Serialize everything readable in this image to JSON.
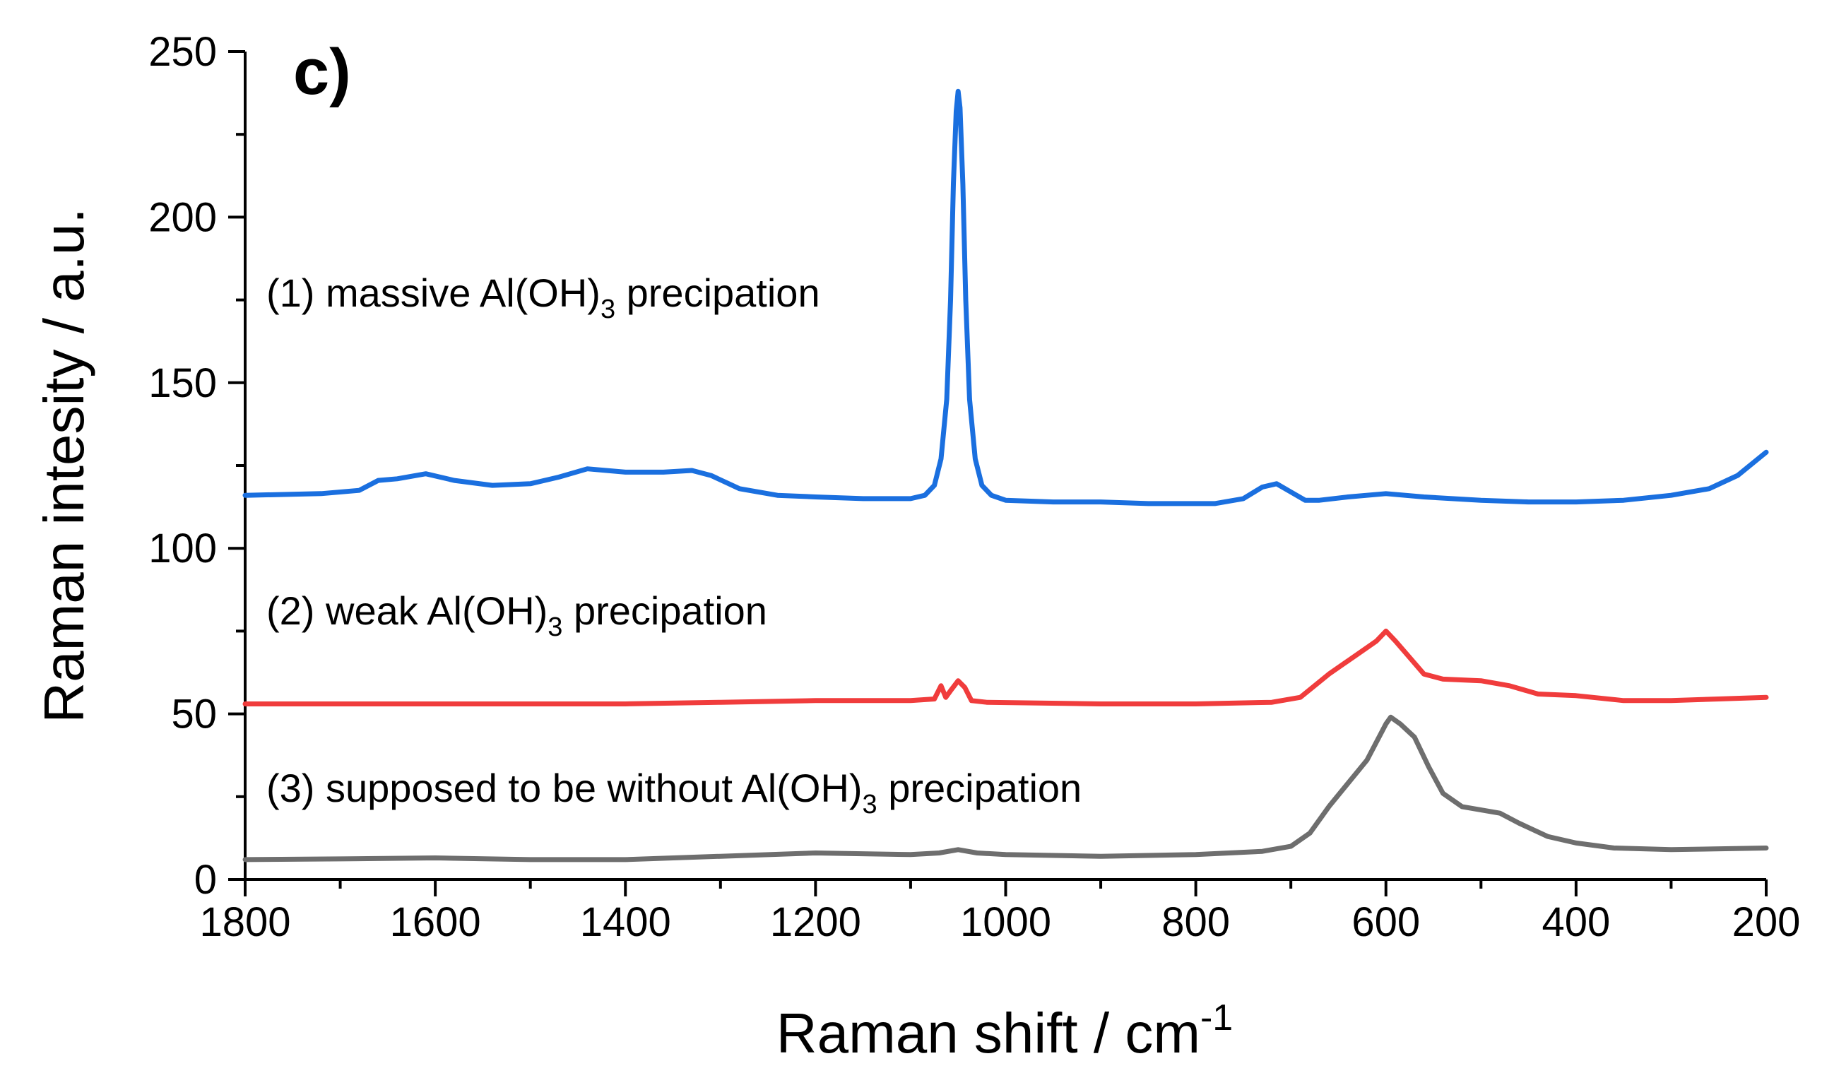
{
  "chart_data": {
    "type": "line",
    "title": "",
    "panel_label": "c)",
    "xlabel": "Raman shift / cm",
    "xlabel_sup": "-1",
    "ylabel": "Raman intesity / a.u.",
    "xlim": [
      1800,
      200
    ],
    "ylim": [
      0,
      250
    ],
    "x_reversed": true,
    "x_ticks": [
      1800,
      1600,
      1400,
      1200,
      1000,
      800,
      600,
      400,
      200
    ],
    "y_ticks": [
      0,
      50,
      100,
      150,
      200,
      250
    ],
    "grid": false,
    "series": [
      {
        "name": "(1) massive Al(OH)3 precipation",
        "color": "#1a6fdf",
        "points": [
          [
            1800,
            116
          ],
          [
            1720,
            116.5
          ],
          [
            1680,
            117.5
          ],
          [
            1660,
            120.5
          ],
          [
            1640,
            121
          ],
          [
            1610,
            122.5
          ],
          [
            1580,
            120.5
          ],
          [
            1540,
            119
          ],
          [
            1500,
            119.5
          ],
          [
            1470,
            121.5
          ],
          [
            1440,
            124
          ],
          [
            1400,
            123
          ],
          [
            1360,
            123
          ],
          [
            1330,
            123.5
          ],
          [
            1310,
            122
          ],
          [
            1280,
            118
          ],
          [
            1240,
            116
          ],
          [
            1200,
            115.5
          ],
          [
            1150,
            115
          ],
          [
            1100,
            115
          ],
          [
            1085,
            116
          ],
          [
            1075,
            119
          ],
          [
            1068,
            127
          ],
          [
            1062,
            145
          ],
          [
            1058,
            175
          ],
          [
            1055,
            210
          ],
          [
            1052,
            232
          ],
          [
            1050,
            238
          ],
          [
            1048,
            233
          ],
          [
            1045,
            210
          ],
          [
            1042,
            175
          ],
          [
            1038,
            145
          ],
          [
            1032,
            127
          ],
          [
            1025,
            119
          ],
          [
            1015,
            116
          ],
          [
            1000,
            114.5
          ],
          [
            950,
            114
          ],
          [
            900,
            114
          ],
          [
            850,
            113.5
          ],
          [
            780,
            113.5
          ],
          [
            750,
            115
          ],
          [
            730,
            118.5
          ],
          [
            715,
            119.5
          ],
          [
            700,
            117
          ],
          [
            685,
            114.5
          ],
          [
            670,
            114.5
          ],
          [
            640,
            115.5
          ],
          [
            600,
            116.5
          ],
          [
            560,
            115.5
          ],
          [
            500,
            114.5
          ],
          [
            450,
            114
          ],
          [
            400,
            114
          ],
          [
            350,
            114.5
          ],
          [
            300,
            116
          ],
          [
            260,
            118
          ],
          [
            230,
            122
          ],
          [
            200,
            129
          ]
        ]
      },
      {
        "name": "(2) weak Al(OH)3 precipation",
        "color": "#f03c3c",
        "points": [
          [
            1800,
            53
          ],
          [
            1600,
            53
          ],
          [
            1400,
            53
          ],
          [
            1300,
            53.5
          ],
          [
            1200,
            54
          ],
          [
            1100,
            54
          ],
          [
            1075,
            54.5
          ],
          [
            1068,
            58.5
          ],
          [
            1063,
            55
          ],
          [
            1058,
            57
          ],
          [
            1050,
            60
          ],
          [
            1043,
            58
          ],
          [
            1036,
            54
          ],
          [
            1020,
            53.5
          ],
          [
            900,
            53
          ],
          [
            800,
            53
          ],
          [
            720,
            53.5
          ],
          [
            690,
            55
          ],
          [
            660,
            62
          ],
          [
            630,
            68
          ],
          [
            610,
            72
          ],
          [
            600,
            75
          ],
          [
            590,
            72
          ],
          [
            575,
            67
          ],
          [
            560,
            62
          ],
          [
            540,
            60.5
          ],
          [
            500,
            60
          ],
          [
            470,
            58.5
          ],
          [
            440,
            56
          ],
          [
            400,
            55.5
          ],
          [
            350,
            54
          ],
          [
            300,
            54
          ],
          [
            250,
            54.5
          ],
          [
            200,
            55
          ]
        ]
      },
      {
        "name": "(3) supposed to be without Al(OH)3 precipation",
        "color": "#6e6e6e",
        "points": [
          [
            1800,
            6
          ],
          [
            1700,
            6.2
          ],
          [
            1600,
            6.5
          ],
          [
            1500,
            6
          ],
          [
            1400,
            6
          ],
          [
            1300,
            7
          ],
          [
            1200,
            8
          ],
          [
            1100,
            7.5
          ],
          [
            1070,
            8
          ],
          [
            1050,
            9
          ],
          [
            1030,
            8
          ],
          [
            1000,
            7.5
          ],
          [
            900,
            7
          ],
          [
            800,
            7.5
          ],
          [
            730,
            8.5
          ],
          [
            700,
            10
          ],
          [
            680,
            14
          ],
          [
            660,
            22
          ],
          [
            640,
            29
          ],
          [
            620,
            36
          ],
          [
            600,
            47
          ],
          [
            595,
            49
          ],
          [
            585,
            47
          ],
          [
            570,
            43
          ],
          [
            555,
            34
          ],
          [
            540,
            26
          ],
          [
            520,
            22
          ],
          [
            500,
            21
          ],
          [
            480,
            20
          ],
          [
            460,
            17
          ],
          [
            430,
            13
          ],
          [
            400,
            11
          ],
          [
            360,
            9.5
          ],
          [
            300,
            9
          ],
          [
            200,
            9.5
          ]
        ]
      }
    ],
    "annotations": [
      {
        "prefix": "(1) massive Al(OH)",
        "sub": "3",
        "suffix": " precipation",
        "at": [
          1800,
          173
        ]
      },
      {
        "prefix": "(2) weak Al(OH)",
        "sub": "3",
        "suffix": " precipation",
        "at": [
          1800,
          77
        ]
      },
      {
        "prefix": "(3) supposed to be without Al(OH)",
        "sub": "3",
        "suffix": " precipation",
        "at": [
          1800,
          23.5
        ]
      }
    ]
  }
}
